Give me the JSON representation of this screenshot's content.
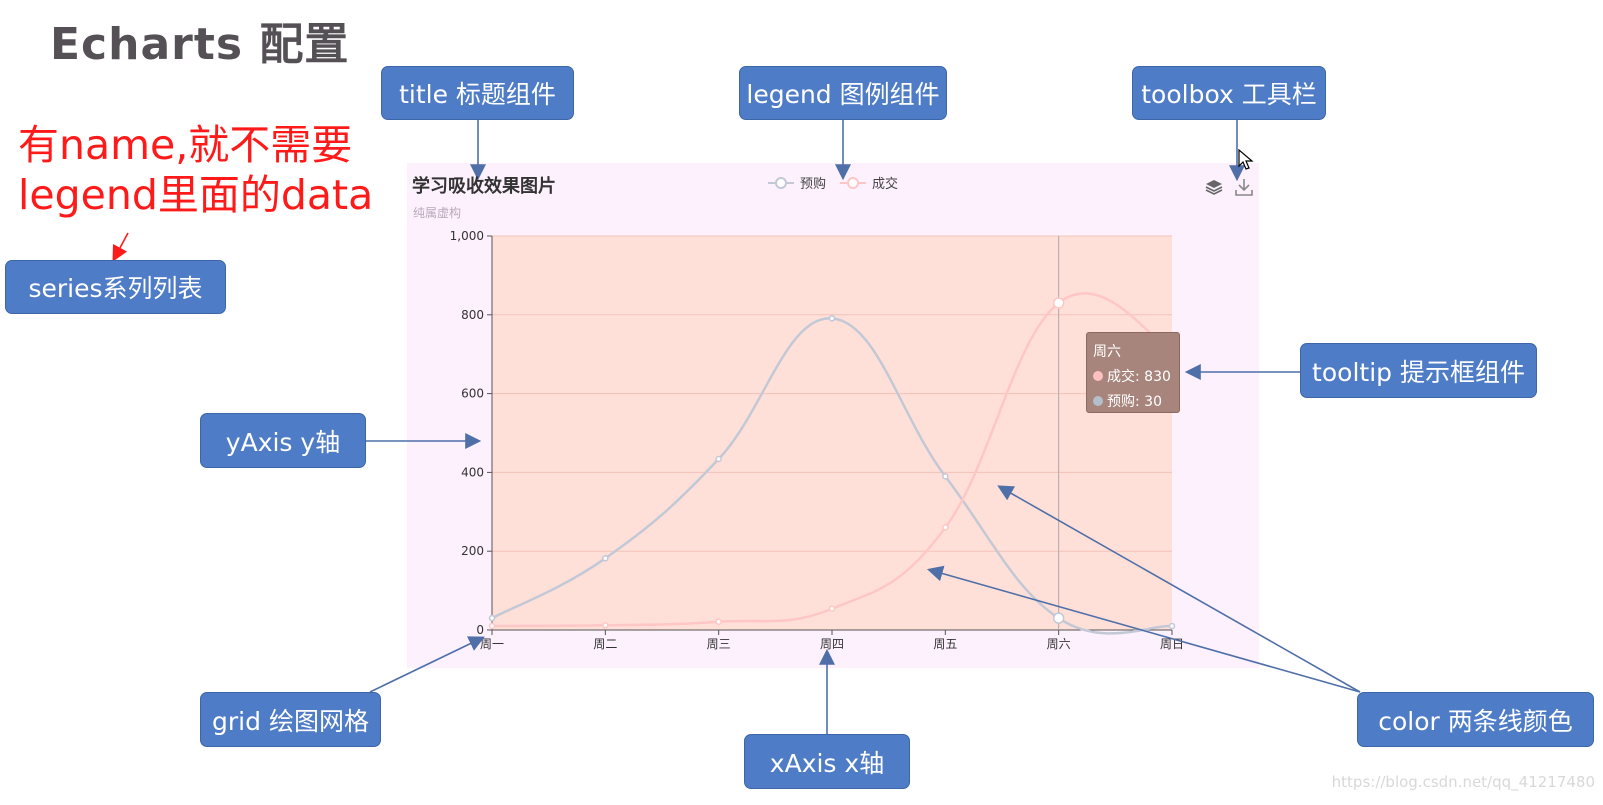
{
  "page_title": "Echarts 配置",
  "note": {
    "line1": "有name,就不需要",
    "line2": "legend里面的data"
  },
  "callouts": {
    "title": "title 标题组件",
    "legend": "legend 图例组件",
    "toolbox": "toolbox 工具栏",
    "series": "series系列列表",
    "yaxis": "yAxis y轴",
    "tooltip": "tooltip 提示框组件",
    "grid": "grid 绘图网格",
    "xaxis": "xAxis x轴",
    "color": "color 两条线颜色"
  },
  "chart": {
    "title": "学习吸收效果图片",
    "subtitle": "纯属虚构",
    "toolbox_icons": [
      "stack-icon",
      "download-icon"
    ]
  },
  "tooltip": {
    "header": "周六",
    "rows": [
      {
        "label": "成交: 830",
        "color": "#ffc0c0"
      },
      {
        "label": "预购: 30",
        "color": "#b5bfcc"
      }
    ]
  },
  "watermark": "https://blog.csdn.net/qq_41217480",
  "colors": {
    "callout_bg": "#4f7cc6",
    "note_red": "#ff1a1a",
    "chart_bg": "#fdf1fd",
    "grid_bg": "#ffe0d8",
    "series_yugou": "#c2c8d6",
    "series_chengjiao": "#ffc6c6",
    "arrow": "#4f6fa9"
  },
  "chart_data": {
    "type": "line",
    "title": "学习吸收效果图片",
    "subtitle": "纯属虚构",
    "categories": [
      "周一",
      "周二",
      "周三",
      "周四",
      "周五",
      "周六",
      "周日"
    ],
    "series": [
      {
        "name": "预购",
        "values": [
          30,
          182,
          434,
          791,
          390,
          30,
          10
        ],
        "smooth": true
      },
      {
        "name": "成交",
        "values": [
          10,
          12,
          21,
          54,
          260,
          830,
          710
        ],
        "smooth": true
      }
    ],
    "ylim": [
      0,
      1000
    ],
    "yticks": [
      "0",
      "200",
      "400",
      "600",
      "800",
      "1,000"
    ],
    "grid": true,
    "legend_position": "top-center"
  }
}
